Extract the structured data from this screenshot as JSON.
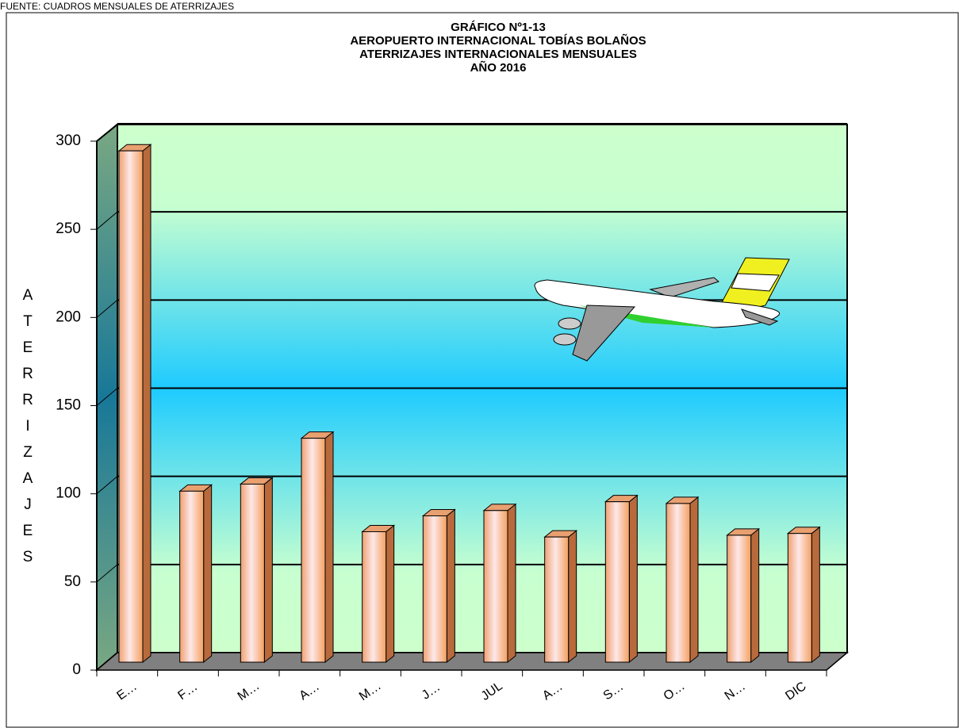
{
  "chart_data": {
    "type": "bar",
    "source": "FUENTE: CUADROS MENSUALES DE ATERRIZAJES",
    "title": [
      "GRÁFICO Nº1-13",
      "AEROPUERTO INTERNACIONAL TOBÍAS BOLAÑOS",
      "ATERRIZAJES INTERNACIONALES MENSUALES",
      "AÑO 2016"
    ],
    "y_label": "ATERRIZAJES",
    "categories": [
      "E…",
      "F…",
      "M…",
      "A…",
      "M…",
      "J…",
      "JUL",
      "A…",
      "S…",
      "O…",
      "N…",
      "DIC"
    ],
    "values": [
      290,
      97,
      101,
      127,
      74,
      83,
      86,
      71,
      91,
      90,
      72,
      73
    ],
    "ylim": [
      0,
      300
    ],
    "yticks": [
      0,
      50,
      100,
      150,
      200,
      250,
      300
    ],
    "grid": true
  }
}
